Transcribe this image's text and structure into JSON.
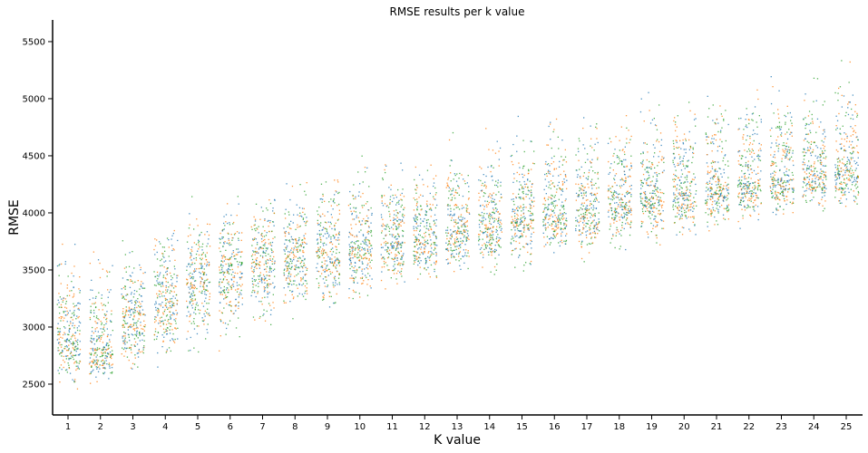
{
  "chart_data": {
    "type": "scatter",
    "title": "RMSE results per k value",
    "xlabel": "K value",
    "ylabel": "RMSE",
    "categories": [
      "1",
      "2",
      "3",
      "4",
      "5",
      "6",
      "7",
      "8",
      "9",
      "10",
      "11",
      "12",
      "13",
      "14",
      "15",
      "16",
      "17",
      "18",
      "19",
      "20",
      "21",
      "22",
      "23",
      "24",
      "25"
    ],
    "yticks": [
      2500,
      3000,
      3500,
      4000,
      4500,
      5000,
      5500
    ],
    "ylim": [
      2230,
      5690
    ],
    "grid": false,
    "legend": "none",
    "colors": [
      "#1f77b4",
      "#ff7f0e",
      "#2ca02c"
    ],
    "distribution_per_k": [
      {
        "k": "1",
        "median": 2920,
        "low": 2400,
        "high": 3800
      },
      {
        "k": "2",
        "median": 2820,
        "low": 2480,
        "high": 3700
      },
      {
        "k": "3",
        "median": 3050,
        "low": 2580,
        "high": 3800
      },
      {
        "k": "4",
        "median": 3220,
        "low": 2700,
        "high": 3950
      },
      {
        "k": "5",
        "median": 3400,
        "low": 2750,
        "high": 4050
      },
      {
        "k": "6",
        "median": 3480,
        "low": 2850,
        "high": 4150
      },
      {
        "k": "7",
        "median": 3550,
        "low": 2950,
        "high": 4220
      },
      {
        "k": "8",
        "median": 3600,
        "low": 3100,
        "high": 4300
      },
      {
        "k": "9",
        "median": 3680,
        "low": 3150,
        "high": 4350
      },
      {
        "k": "10",
        "median": 3730,
        "low": 3220,
        "high": 4420
      },
      {
        "k": "11",
        "median": 3760,
        "low": 3300,
        "high": 4500
      },
      {
        "k": "12",
        "median": 3800,
        "low": 3350,
        "high": 4580
      },
      {
        "k": "13",
        "median": 3860,
        "low": 3420,
        "high": 4650
      },
      {
        "k": "14",
        "median": 3920,
        "low": 3480,
        "high": 4700
      },
      {
        "k": "15",
        "median": 3960,
        "low": 3530,
        "high": 4780
      },
      {
        "k": "16",
        "median": 4000,
        "low": 3580,
        "high": 4830
      },
      {
        "k": "17",
        "median": 4050,
        "low": 3630,
        "high": 4880
      },
      {
        "k": "18",
        "median": 4100,
        "low": 3680,
        "high": 4900
      },
      {
        "k": "19",
        "median": 4150,
        "low": 3750,
        "high": 4980
      },
      {
        "k": "20",
        "median": 4190,
        "low": 3800,
        "high": 5030
      },
      {
        "k": "21",
        "median": 4230,
        "low": 3850,
        "high": 5080
      },
      {
        "k": "22",
        "median": 4270,
        "low": 3880,
        "high": 5120
      },
      {
        "k": "23",
        "median": 4300,
        "low": 3930,
        "high": 5150
      },
      {
        "k": "24",
        "median": 4340,
        "low": 3980,
        "high": 5200
      },
      {
        "k": "25",
        "median": 4380,
        "low": 4020,
        "high": 5230
      }
    ]
  }
}
